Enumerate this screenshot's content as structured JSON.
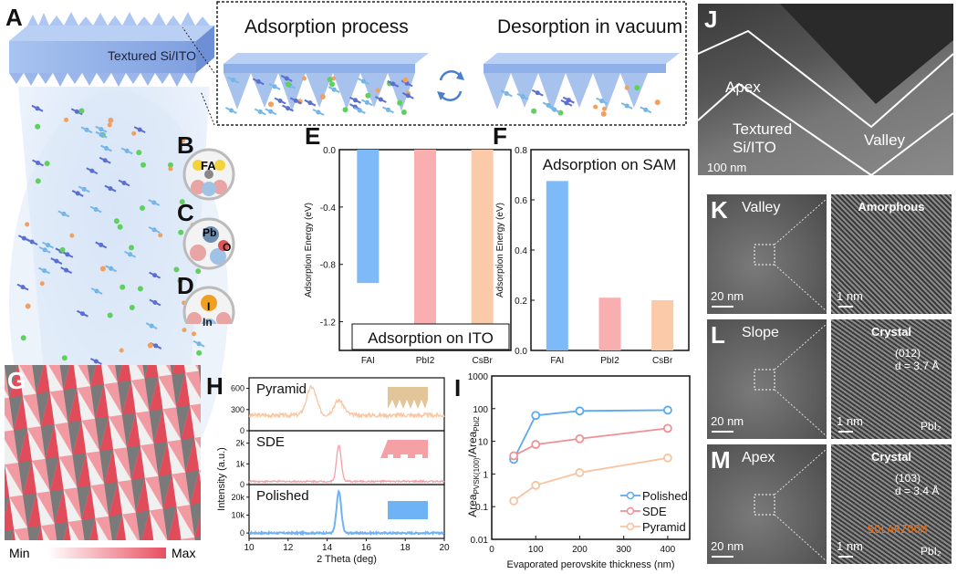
{
  "panels": {
    "A": {
      "label": "A",
      "substrate": "Textured Si/ITO",
      "inset_left": "Adsorption process",
      "inset_right": "Desorption in vacuum"
    },
    "B": {
      "label": "B",
      "atom": "FA"
    },
    "C": {
      "label": "C",
      "atoms": [
        "Pb",
        "O"
      ]
    },
    "D": {
      "label": "D",
      "atoms": [
        "I",
        "In"
      ]
    },
    "G": {
      "label": "G",
      "scale_min": "Min",
      "scale_max": "Max"
    },
    "J": {
      "label": "J",
      "apex": "Apex",
      "substrate": "Textured\nSi/ITO",
      "valley": "Valley",
      "scalebar": "100 nm"
    },
    "K": {
      "label": "K",
      "region": "Valley",
      "scalebar": "20 nm",
      "zoom_title": "Amorphous",
      "zoom_scalebar": "1 nm"
    },
    "L": {
      "label": "L",
      "region": "Slope",
      "scalebar": "20 nm",
      "zoom_title": "Crystal",
      "plane": "(012)",
      "spacing": "d = 3.7 Å",
      "phase": "PbI₂",
      "zoom_scalebar": "1 nm"
    },
    "M": {
      "label": "M",
      "region": "Apex",
      "scalebar": "20 nm",
      "zoom_title": "Crystal",
      "plane": "(103)",
      "spacing": "d = 3.4 Å",
      "phase": "PbI₂",
      "zoom_scalebar": "1 nm",
      "watermark": "SOLARZOOM"
    }
  },
  "colors": {
    "blue": "#6fb3f5",
    "pink": "#f5a0a5",
    "peach": "#f8c7a4",
    "slab": "#8fb2ea"
  },
  "chart_data": [
    {
      "id": "E",
      "label": "E",
      "type": "bar",
      "title": "Adsorption on ITO",
      "ylabel": "Adsorption Energy (eV)",
      "categories": [
        "FAI",
        "PbI2",
        "CsBr"
      ],
      "values": [
        -0.93,
        -1.27,
        -1.25
      ],
      "ylim": [
        -1.4,
        0.0
      ],
      "yticks": [
        "0.0",
        "-0.4",
        "-0.8",
        "-1.2"
      ],
      "colors": [
        "#7dbaf7",
        "#f9aeb0",
        "#fbcaa9"
      ]
    },
    {
      "id": "F",
      "label": "F",
      "type": "bar",
      "title": "Adsorption on SAM",
      "ylabel": "Adsorption Energy (eV)",
      "categories": [
        "FAI",
        "PbI2",
        "CsBr"
      ],
      "values": [
        0.675,
        0.21,
        0.2
      ],
      "ylim": [
        0.0,
        0.8
      ],
      "yticks": [
        "0.0",
        "0.2",
        "0.4",
        "0.6",
        "0.8"
      ],
      "colors": [
        "#7dbaf7",
        "#f9aeb0",
        "#fbcaa9"
      ]
    },
    {
      "id": "H",
      "label": "H",
      "type": "line",
      "xlabel": "2 Theta (deg)",
      "ylabel": "Intensity (a.u.)",
      "xlim": [
        10,
        20
      ],
      "xticks": [
        "10",
        "12",
        "14",
        "16",
        "18",
        "20"
      ],
      "series": [
        {
          "name": "Pyramid",
          "color": "#f8c7a4",
          "ylim": [
            0,
            750
          ],
          "yticks": [
            "0",
            "300",
            "600"
          ],
          "baseline": 220,
          "peaks": [
            {
              "x": 13.2,
              "y": 620
            },
            {
              "x": 14.6,
              "y": 430
            }
          ]
        },
        {
          "name": "SDE",
          "color": "#f5a0a5",
          "ylim": [
            0,
            2600
          ],
          "yticks": [
            "0",
            "1k",
            "2k"
          ],
          "baseline": 150,
          "peaks": [
            {
              "x": 14.6,
              "y": 1900
            }
          ]
        },
        {
          "name": "Polished",
          "color": "#6fb3f5",
          "ylim": [
            -3000,
            27000
          ],
          "yticks": [
            "0",
            "10k",
            "20k"
          ],
          "baseline": 0,
          "peaks": [
            {
              "x": 14.6,
              "y": 23000
            }
          ]
        }
      ]
    },
    {
      "id": "I",
      "label": "I",
      "type": "line",
      "xlabel": "Evaporated perovskite thickness (nm)",
      "ylabel": "Area_PVSK(100)/Area_PbI2",
      "ylabel_main": "Area",
      "ylabel_sub1": "PVSK(100)",
      "ylabel_mid": "/Area",
      "ylabel_sub2": "PbI2",
      "xlim": [
        0,
        450
      ],
      "xticks": [
        "0",
        "100",
        "200",
        "300",
        "400"
      ],
      "yscale": "log",
      "ylim": [
        0.01,
        1000
      ],
      "yticks": [
        "0.01",
        "0.1",
        "1",
        "10",
        "100",
        "1000"
      ],
      "legend": "bottom-right",
      "x": [
        50,
        100,
        200,
        400
      ],
      "series": [
        {
          "name": "Polished",
          "color": "#5aaaf0",
          "values": [
            2.8,
            62,
            85,
            90
          ]
        },
        {
          "name": "SDE",
          "color": "#f08f96",
          "values": [
            3.6,
            8,
            12,
            25
          ]
        },
        {
          "name": "Pyramid",
          "color": "#f8c3a0",
          "values": [
            0.15,
            0.45,
            1.1,
            3.1
          ]
        }
      ]
    }
  ]
}
